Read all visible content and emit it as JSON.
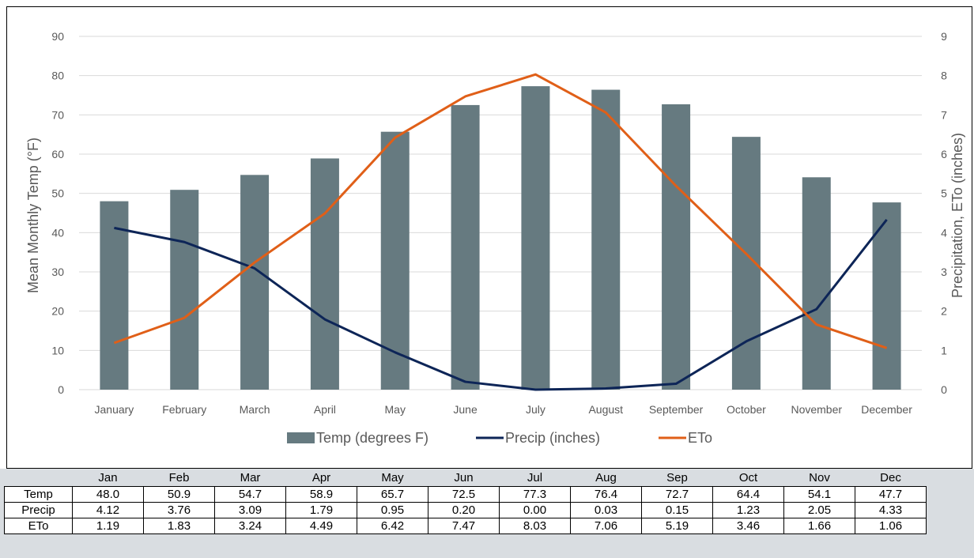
{
  "chart_data": {
    "type": "bar",
    "categories": [
      "January",
      "February",
      "March",
      "April",
      "May",
      "June",
      "July",
      "August",
      "September",
      "October",
      "November",
      "December"
    ],
    "series": [
      {
        "name": "Temp (degrees F)",
        "kind": "bar",
        "axis": "left",
        "color": "#667a80",
        "values": [
          48.0,
          50.9,
          54.7,
          58.9,
          65.7,
          72.5,
          77.3,
          76.4,
          72.7,
          64.4,
          54.1,
          47.7
        ]
      },
      {
        "name": "Precip (inches)",
        "kind": "line",
        "axis": "right",
        "color": "#0d2557",
        "values": [
          4.12,
          3.76,
          3.09,
          1.79,
          0.95,
          0.2,
          0.0,
          0.03,
          0.15,
          1.23,
          2.05,
          4.33
        ]
      },
      {
        "name": "ETo",
        "kind": "line",
        "axis": "right",
        "color": "#e05f18",
        "values": [
          1.19,
          1.83,
          3.24,
          4.49,
          6.42,
          7.47,
          8.03,
          7.06,
          5.19,
          3.46,
          1.66,
          1.06
        ]
      }
    ],
    "ylabel": "Mean Monthly Temp (°F)",
    "y2label": "Precipitation, ETo (inches)",
    "ylim": [
      0,
      90
    ],
    "y2lim": [
      0,
      9
    ],
    "yticks": [
      "0",
      "10",
      "20",
      "30",
      "40",
      "50",
      "60",
      "70",
      "80",
      "90"
    ],
    "y2ticks": [
      "0",
      "1",
      "2",
      "3",
      "4",
      "5",
      "6",
      "7",
      "8",
      "9"
    ],
    "grid": true,
    "legend_position": "bottom"
  },
  "table": {
    "columns": [
      "Jan",
      "Feb",
      "Mar",
      "Apr",
      "May",
      "Jun",
      "Jul",
      "Aug",
      "Sep",
      "Oct",
      "Nov",
      "Dec"
    ],
    "rows": [
      {
        "label": "Temp",
        "values": [
          "48.0",
          "50.9",
          "54.7",
          "58.9",
          "65.7",
          "72.5",
          "77.3",
          "76.4",
          "72.7",
          "64.4",
          "54.1",
          "47.7"
        ]
      },
      {
        "label": "Precip",
        "values": [
          "4.12",
          "3.76",
          "3.09",
          "1.79",
          "0.95",
          "0.20",
          "0.00",
          "0.03",
          "0.15",
          "1.23",
          "2.05",
          "4.33"
        ]
      },
      {
        "label": "ETo",
        "values": [
          "1.19",
          "1.83",
          "3.24",
          "4.49",
          "6.42",
          "7.47",
          "8.03",
          "7.06",
          "5.19",
          "3.46",
          "1.66",
          "1.06"
        ]
      }
    ]
  }
}
